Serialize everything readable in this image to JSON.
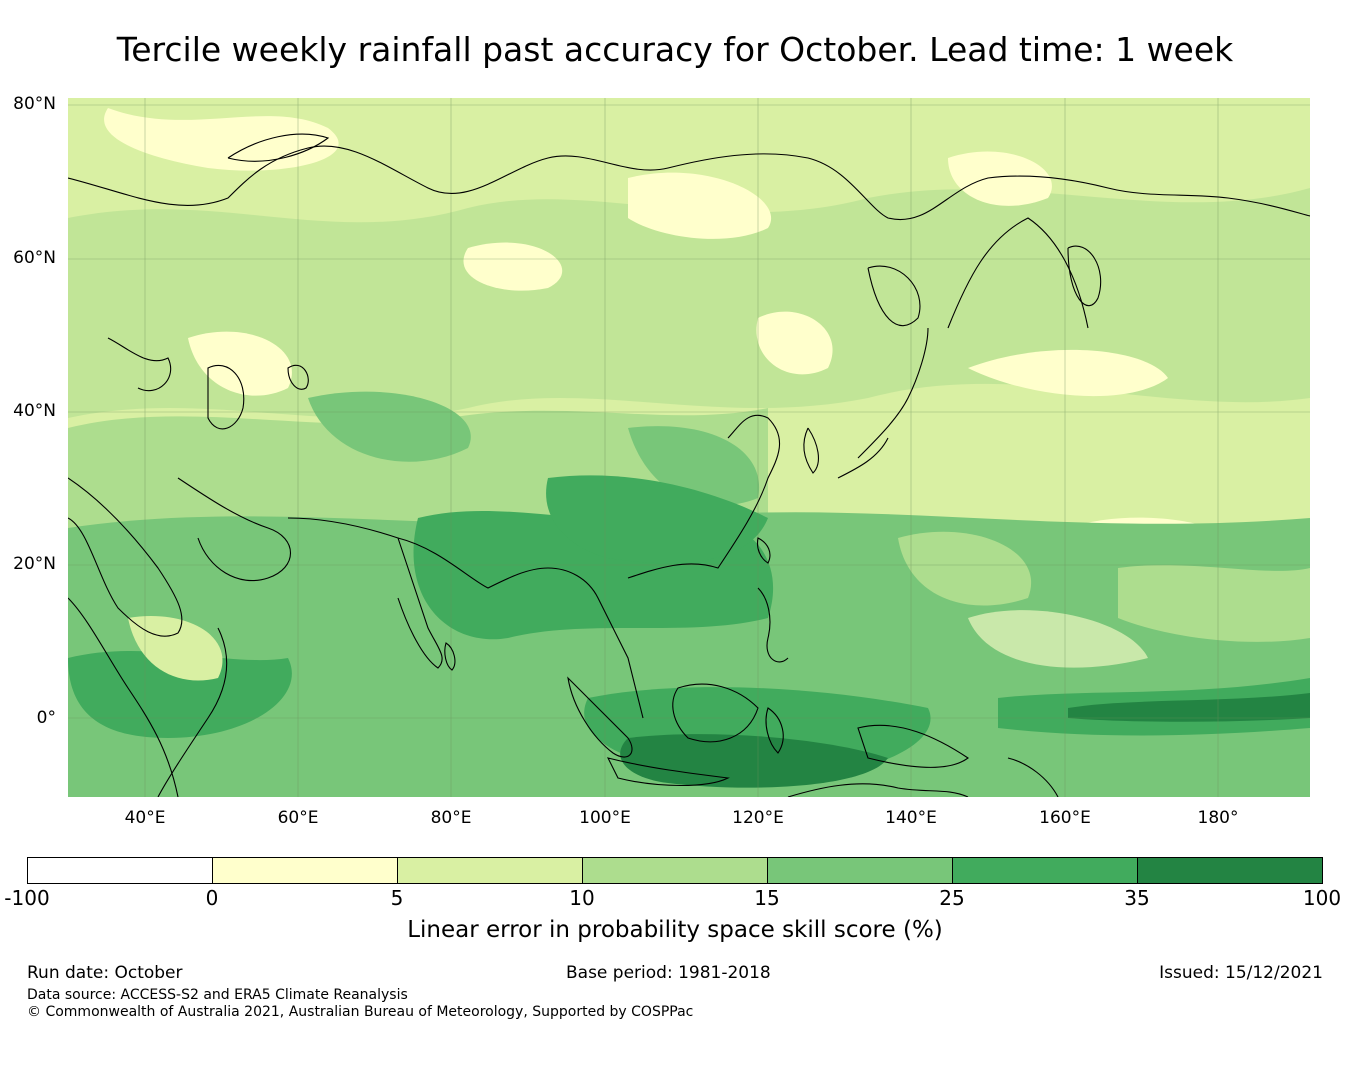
{
  "title": "Tercile weekly rainfall past accuracy for October. Lead time: 1 week",
  "map": {
    "lat_labels": [
      "80°N",
      "60°N",
      "40°N",
      "20°N",
      "0°"
    ],
    "lon_labels": [
      "40°E",
      "60°E",
      "80°E",
      "100°E",
      "120°E",
      "140°E",
      "160°E",
      "180°"
    ],
    "extent": {
      "lon_min": 30,
      "lon_max": 192,
      "lat_min": -11,
      "lat_max": 80
    }
  },
  "colorbar": {
    "ticks": [
      "-100",
      "0",
      "5",
      "10",
      "15",
      "25",
      "35",
      "100"
    ],
    "colors": [
      "#ffffff",
      "#ffffcc",
      "#d9f0a3",
      "#addd8e",
      "#78c679",
      "#41ab5d",
      "#238443"
    ],
    "label": "Linear error in probability space skill score (%)"
  },
  "footer": {
    "run_date": "Run date: October",
    "base_period": "Base period: 1981-2018",
    "issued": "Issued: 15/12/2021",
    "data_source": "Data source: ACCESS-S2 and ERA5 Climate Reanalysis",
    "copyright": "© Commonwealth of Australia 2021, Australian Bureau of Meteorology, Supported by COSPPac"
  }
}
